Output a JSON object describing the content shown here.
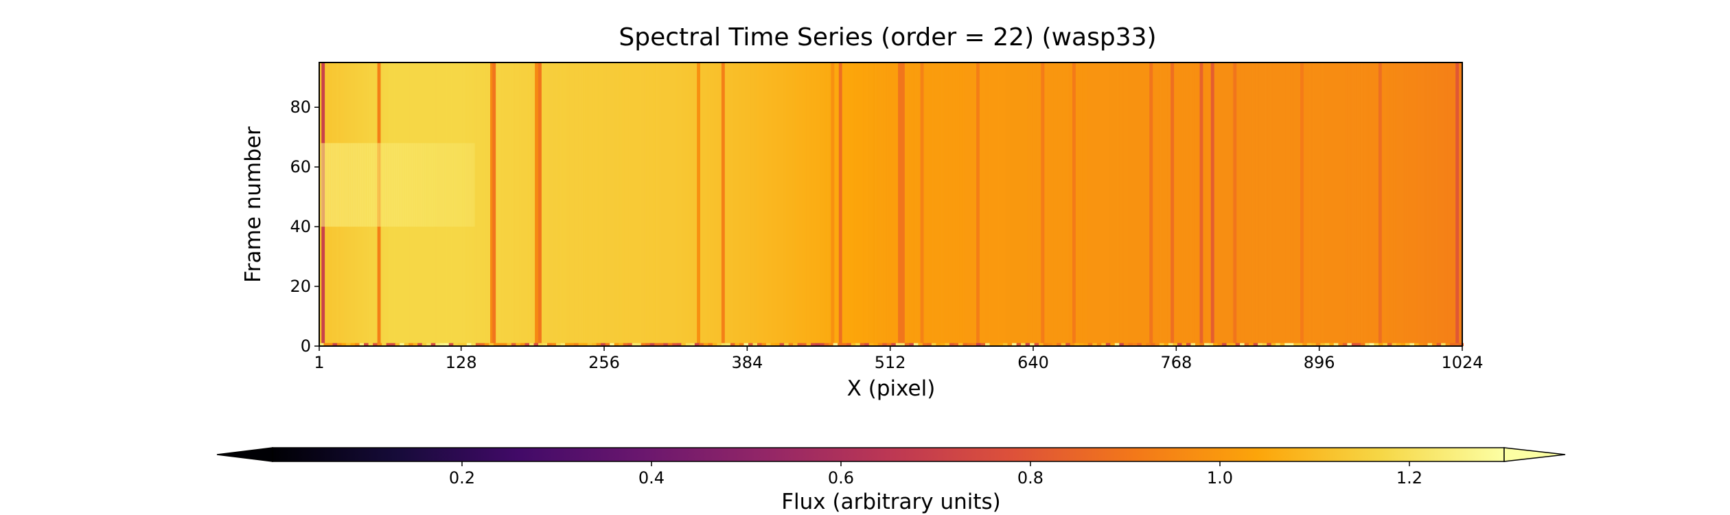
{
  "chart_data": {
    "type": "heatmap",
    "title": "Spectral Time Series (order = 22) (wasp33)",
    "xlabel": "X (pixel)",
    "ylabel": "Frame number",
    "xlim": [
      1,
      1024
    ],
    "ylim": [
      0,
      95
    ],
    "x_ticks": [
      1,
      128,
      256,
      384,
      512,
      640,
      768,
      896,
      1024
    ],
    "y_ticks": [
      0,
      20,
      40,
      60,
      80
    ],
    "colormap": "inferno",
    "colorbar": {
      "label": "Flux (arbitrary units)",
      "range": [
        0.0,
        1.3
      ],
      "ticks": [
        0.2,
        0.4,
        0.6,
        0.8,
        1.0,
        1.2
      ],
      "extend": "both",
      "orientation": "horizontal",
      "placement": "bottom"
    },
    "continuum_profile": {
      "x": [
        1,
        64,
        128,
        192,
        256,
        320,
        384,
        448,
        512,
        576,
        640,
        704,
        768,
        832,
        896,
        960,
        1024
      ],
      "flux": [
        1.12,
        1.17,
        1.17,
        1.15,
        1.14,
        1.13,
        1.1,
        1.06,
        1.02,
        1.01,
        1.0,
        0.99,
        0.98,
        0.97,
        0.97,
        0.96,
        0.93
      ]
    },
    "absorption_lines": [
      {
        "x": 4,
        "flux": 0.7
      },
      {
        "x": 54,
        "flux": 0.93
      },
      {
        "x": 155,
        "flux": 0.96
      },
      {
        "x": 157,
        "flux": 0.9
      },
      {
        "x": 195,
        "flux": 0.96
      },
      {
        "x": 198,
        "flux": 0.9
      },
      {
        "x": 340,
        "flux": 0.98
      },
      {
        "x": 362,
        "flux": 0.93
      },
      {
        "x": 460,
        "flux": 0.98
      },
      {
        "x": 467,
        "flux": 0.88
      },
      {
        "x": 520,
        "flux": 0.9
      },
      {
        "x": 523,
        "flux": 0.9
      },
      {
        "x": 540,
        "flux": 0.94
      },
      {
        "x": 590,
        "flux": 0.93
      },
      {
        "x": 648,
        "flux": 0.92
      },
      {
        "x": 676,
        "flux": 0.92
      },
      {
        "x": 745,
        "flux": 0.9
      },
      {
        "x": 764,
        "flux": 0.88
      },
      {
        "x": 790,
        "flux": 0.84
      },
      {
        "x": 800,
        "flux": 0.82
      },
      {
        "x": 820,
        "flux": 0.9
      },
      {
        "x": 880,
        "flux": 0.92
      },
      {
        "x": 950,
        "flux": 0.88
      },
      {
        "x": 1019,
        "flux": 0.8
      }
    ],
    "bright_feature": {
      "x_range": [
        2,
        140
      ],
      "frames": [
        40,
        68
      ],
      "flux": 1.25
    },
    "bottom_frame_anomaly": {
      "frames": [
        0,
        1
      ],
      "flux_range": [
        0.7,
        1.3
      ]
    }
  }
}
